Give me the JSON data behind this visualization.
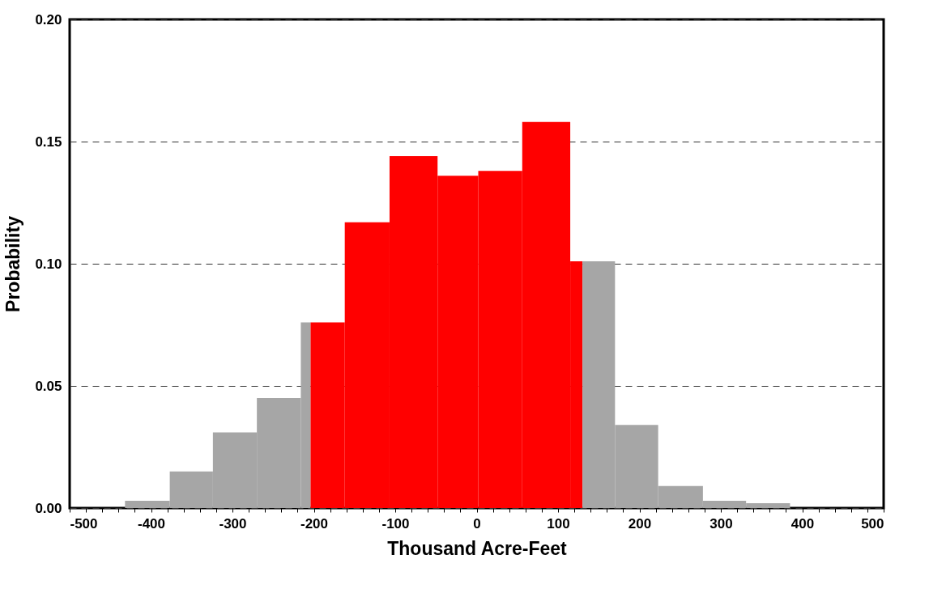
{
  "chart_data": {
    "type": "histogram",
    "xlabel": "Thousand Acre-Feet",
    "ylabel": "Probability",
    "bins": [
      -432,
      -377,
      -324,
      -270,
      -216,
      -204,
      -162,
      -107,
      -48,
      2,
      56,
      115,
      130,
      170,
      223,
      278,
      331,
      385
    ],
    "values": [
      0.003,
      0.015,
      0.031,
      0.045,
      0.076,
      0.076,
      0.117,
      0.144,
      0.136,
      0.138,
      0.158,
      0.101,
      0.101,
      0.034,
      0.009,
      0.003,
      0.002
    ],
    "colors": [
      "#a6a6a6",
      "#a6a6a6",
      "#a6a6a6",
      "#a6a6a6",
      "#a6a6a6",
      "#ff0000",
      "#ff0000",
      "#ff0000",
      "#ff0000",
      "#ff0000",
      "#ff0000",
      "#ff0000",
      "#a6a6a6",
      "#a6a6a6",
      "#a6a6a6",
      "#a6a6a6",
      "#a6a6a6"
    ],
    "xlim": [
      -500,
      500
    ],
    "xticks": [
      -500,
      {
        "value": -480,
        "label": null
      },
      {
        "value": -460,
        "label": null
      },
      {
        "value": -440,
        "label": null
      },
      {
        "value": -420,
        "label": null
      },
      -400,
      {
        "value": -380,
        "label": null
      },
      {
        "value": -360,
        "label": null
      },
      {
        "value": -340,
        "label": null
      },
      {
        "value": -320,
        "label": null
      },
      -300,
      {
        "value": -280,
        "label": null
      },
      {
        "value": -260,
        "label": null
      },
      {
        "value": -240,
        "label": null
      },
      {
        "value": -220,
        "label": null
      },
      -200,
      {
        "value": -180,
        "label": null
      },
      {
        "value": -160,
        "label": null
      },
      {
        "value": -140,
        "label": null
      },
      {
        "value": -120,
        "label": null
      },
      -100,
      {
        "value": -80,
        "label": null
      },
      {
        "value": -60,
        "label": null
      },
      {
        "value": -40,
        "label": null
      },
      {
        "value": -20,
        "label": null
      },
      0,
      {
        "value": 20,
        "label": null
      },
      {
        "value": 40,
        "label": null
      },
      {
        "value": 60,
        "label": null
      },
      {
        "value": 80,
        "label": null
      },
      100,
      {
        "value": 120,
        "label": null
      },
      {
        "value": 140,
        "label": null
      },
      {
        "value": 160,
        "label": null
      },
      {
        "value": 180,
        "label": null
      },
      200,
      {
        "value": 220,
        "label": null
      },
      {
        "value": 240,
        "label": null
      },
      {
        "value": 260,
        "label": null
      },
      {
        "value": 280,
        "label": null
      },
      300,
      {
        "value": 320,
        "label": null
      },
      {
        "value": 340,
        "label": null
      },
      {
        "value": 360,
        "label": null
      },
      {
        "value": 380,
        "label": null
      },
      400,
      {
        "value": 420,
        "label": null
      },
      {
        "value": 440,
        "label": null
      },
      {
        "value": 460,
        "label": null
      },
      {
        "value": 480,
        "label": null
      },
      500
    ],
    "ylim": [
      0,
      0.2
    ],
    "yticks": [
      {
        "value": 0,
        "label": "0.00"
      },
      {
        "value": 0.05,
        "label": "0.05"
      },
      {
        "value": 0.1,
        "label": "0.10"
      },
      {
        "value": 0.15,
        "label": "0.15"
      },
      {
        "value": 0.2,
        "label": "0.20"
      }
    ],
    "grid": "y",
    "line_style": "dashed"
  }
}
